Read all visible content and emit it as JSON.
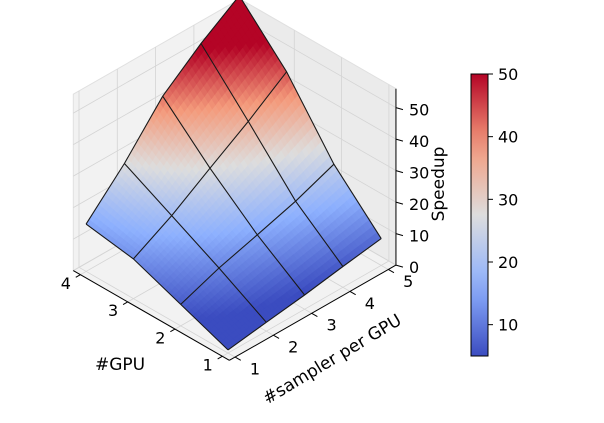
{
  "chart_data": {
    "type": "surface3d",
    "title": "",
    "x": {
      "label": "#GPU",
      "values": [
        1,
        2,
        3,
        4
      ],
      "ticks": [
        "1",
        "2",
        "3",
        "4"
      ]
    },
    "y": {
      "label": "#sampler per GPU",
      "values": [
        1,
        2,
        3,
        4,
        5
      ],
      "ticks": [
        "1",
        "2",
        "3",
        "4",
        "5"
      ]
    },
    "z": {
      "label": "Speedup",
      "ticks": [
        "0",
        "10",
        "20",
        "30",
        "40",
        "50"
      ],
      "range": [
        0,
        55
      ]
    },
    "speedup": [
      [
        1.0,
        2.8,
        4.5,
        6.6,
        8.5
      ],
      [
        6.8,
        11.4,
        15.0,
        18.7,
        23.5
      ],
      [
        12.6,
        19.4,
        27.5,
        35.4,
        44.2
      ],
      [
        15.0,
        27.3,
        41.7,
        51.5,
        59.7
      ]
    ],
    "colorbar": {
      "ticks": [
        "10",
        "20",
        "30",
        "40",
        "50"
      ],
      "range": [
        5,
        50
      ],
      "colormap": "coolwarm",
      "low_color": "#3b4cc0",
      "mid_color": "#dddddd",
      "high_color": "#b40426"
    },
    "grid": true
  }
}
